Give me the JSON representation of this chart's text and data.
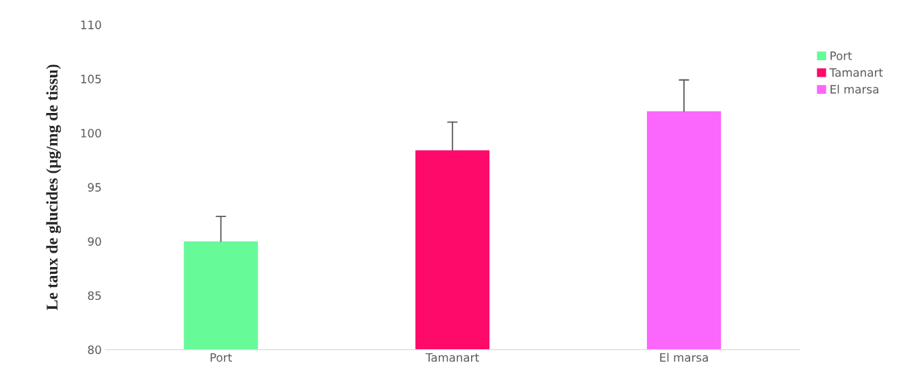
{
  "chart_data": {
    "type": "bar",
    "ylabel": "Le taux de glucides (µg/mg de tissu)",
    "categories": [
      "Port",
      "Tamanart",
      "El marsa"
    ],
    "series": [
      {
        "name": "Port",
        "color": "#66fa98",
        "values": [
          90.0,
          null,
          null
        ],
        "errors": [
          [
            90.0,
            92.3
          ],
          null,
          null
        ]
      },
      {
        "name": "Tamanart",
        "color": "#fe0a6a",
        "values": [
          null,
          98.4,
          null
        ],
        "errors": [
          null,
          [
            98.4,
            101.0
          ],
          null
        ]
      },
      {
        "name": "El marsa",
        "color": "#fb66fb",
        "values": [
          null,
          null,
          102.0
        ],
        "errors": [
          null,
          null,
          [
            102.0,
            104.9
          ]
        ]
      }
    ],
    "ylim": [
      80,
      110
    ],
    "yticks": [
      80,
      85,
      90,
      95,
      100,
      105,
      110
    ],
    "grid": false,
    "legend": "right"
  }
}
